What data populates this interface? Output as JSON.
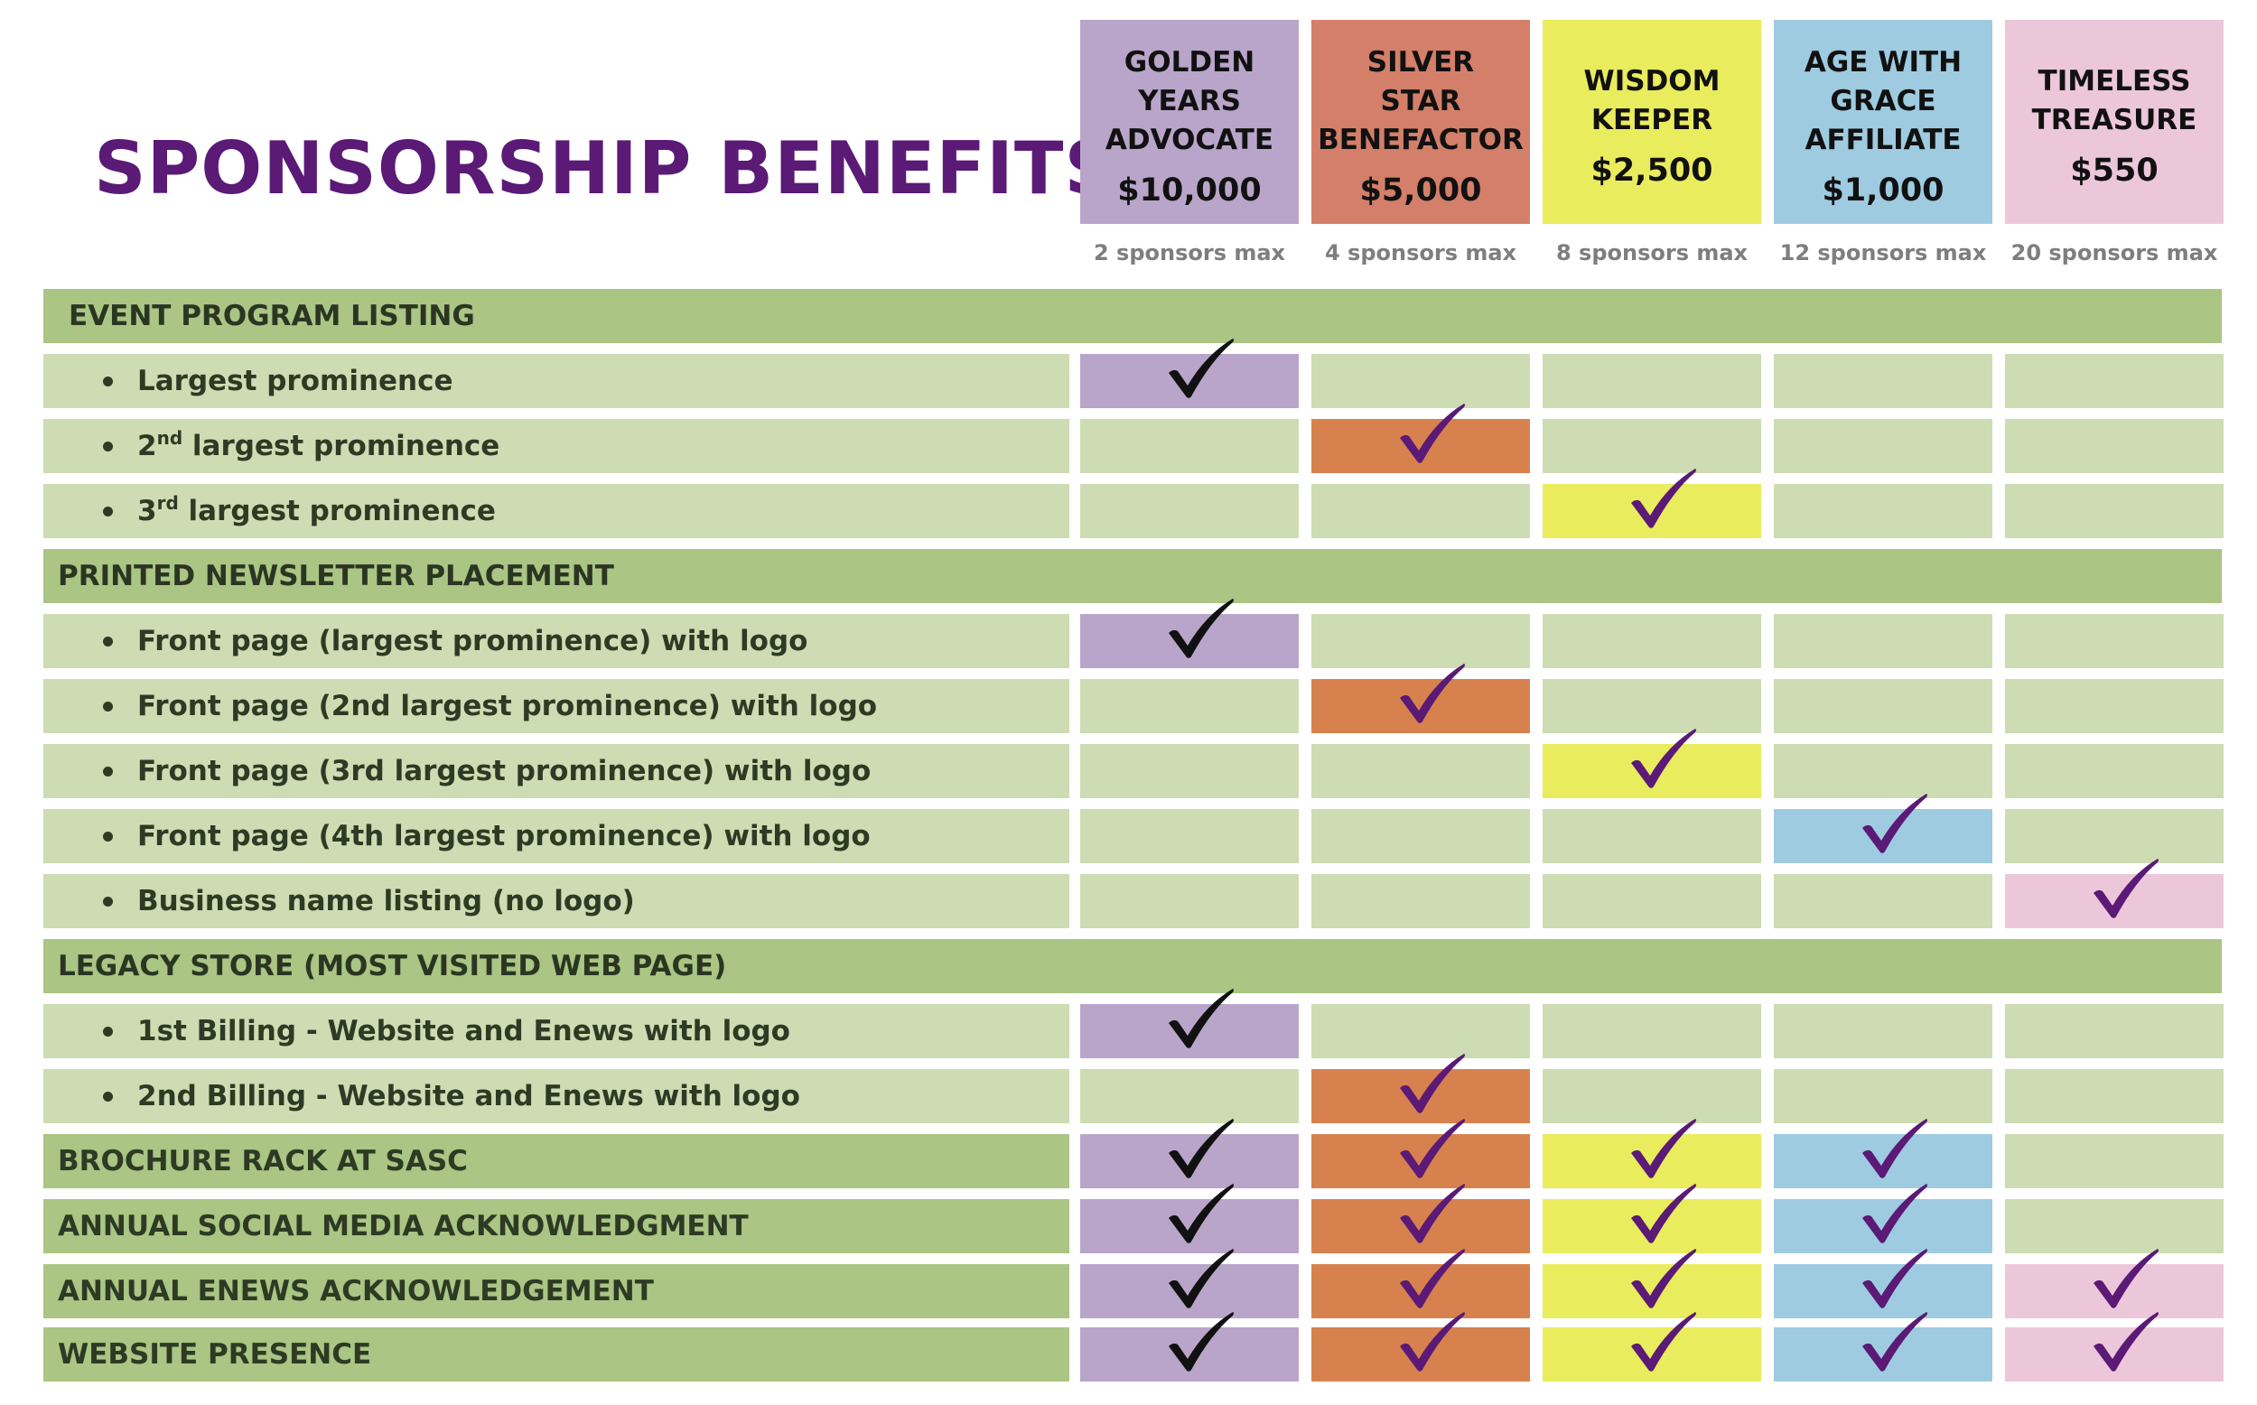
{
  "title": "SPONSORSHIP BENEFITS",
  "tiers": [
    {
      "name": "GOLDEN\nYEARS\nADVOCATE",
      "price": "$10,000",
      "max": "2 sponsors max",
      "color": "#b9a5c9",
      "check_color": "#111111"
    },
    {
      "name": "SILVER\nSTAR\nBENEFACTOR",
      "price": "$5,000",
      "max": "4 sponsors max",
      "color": "#d37f6a",
      "cell_color": "#d7824e",
      "check_color": "#5a1a76"
    },
    {
      "name": "WISDOM\nKEEPER",
      "price": "$2,500",
      "max": "8 sponsors max",
      "color": "#e9ec5d",
      "check_color": "#5a1a76"
    },
    {
      "name": "AGE WITH\nGRACE\nAFFILIATE",
      "price": "$1,000",
      "max": "12 sponsors max",
      "color": "#9ecbe0",
      "check_color": "#5a1a76"
    },
    {
      "name": "TIMELESS\nTREASURE",
      "price": "$550",
      "max": "20 sponsors max",
      "color": "#ecc7da",
      "check_color": "#5a1a76"
    }
  ],
  "colors": {
    "title": "#5a1a76",
    "section_bg": "#aac584",
    "row_bg": "#cddcb2"
  },
  "rows": [
    {
      "type": "section",
      "label": "EVENT PROGRAM LISTING"
    },
    {
      "type": "item",
      "label": "Largest prominence",
      "checks": [
        true,
        false,
        false,
        false,
        false
      ]
    },
    {
      "type": "item",
      "label_html": [
        "2",
        "nd",
        " largest prominence"
      ],
      "label": "2nd largest prominence",
      "checks": [
        false,
        true,
        false,
        false,
        false
      ]
    },
    {
      "type": "item",
      "label_html": [
        "3",
        "rd",
        " largest prominence"
      ],
      "label": "3rd largest prominence",
      "checks": [
        false,
        false,
        true,
        false,
        false
      ]
    },
    {
      "type": "section",
      "label": "PRINTED NEWSLETTER PLACEMENT"
    },
    {
      "type": "item",
      "label": "Front page (largest prominence) with logo",
      "checks": [
        true,
        false,
        false,
        false,
        false
      ]
    },
    {
      "type": "item",
      "label": "Front page (2nd largest prominence) with logo",
      "checks": [
        false,
        true,
        false,
        false,
        false
      ]
    },
    {
      "type": "item",
      "label": "Front page (3rd largest prominence) with logo",
      "checks": [
        false,
        false,
        true,
        false,
        false
      ]
    },
    {
      "type": "item",
      "label": "Front page (4th largest prominence) with logo",
      "checks": [
        false,
        false,
        false,
        true,
        false
      ]
    },
    {
      "type": "item",
      "label": "Business name listing (no logo)",
      "checks": [
        false,
        false,
        false,
        false,
        true
      ]
    },
    {
      "type": "section",
      "label": "LEGACY STORE (MOST VISITED WEB PAGE)"
    },
    {
      "type": "item",
      "label": "1st Billing - Website and Enews with logo",
      "checks": [
        true,
        false,
        false,
        false,
        false
      ]
    },
    {
      "type": "item",
      "label": "2nd Billing - Website and Enews with logo",
      "checks": [
        false,
        true,
        false,
        false,
        false
      ]
    },
    {
      "type": "benefit",
      "label": "BROCHURE RACK AT SASC",
      "checks": [
        true,
        true,
        true,
        true,
        false
      ]
    },
    {
      "type": "benefit",
      "label": "ANNUAL SOCIAL MEDIA ACKNOWLEDGMENT",
      "checks": [
        true,
        true,
        true,
        true,
        false
      ]
    },
    {
      "type": "benefit",
      "label": "ANNUAL ENEWS ACKNOWLEDGEMENT",
      "checks": [
        true,
        true,
        true,
        true,
        true
      ]
    },
    {
      "type": "benefit",
      "label": "WEBSITE PRESENCE",
      "checks": [
        true,
        true,
        true,
        true,
        true
      ]
    }
  ]
}
